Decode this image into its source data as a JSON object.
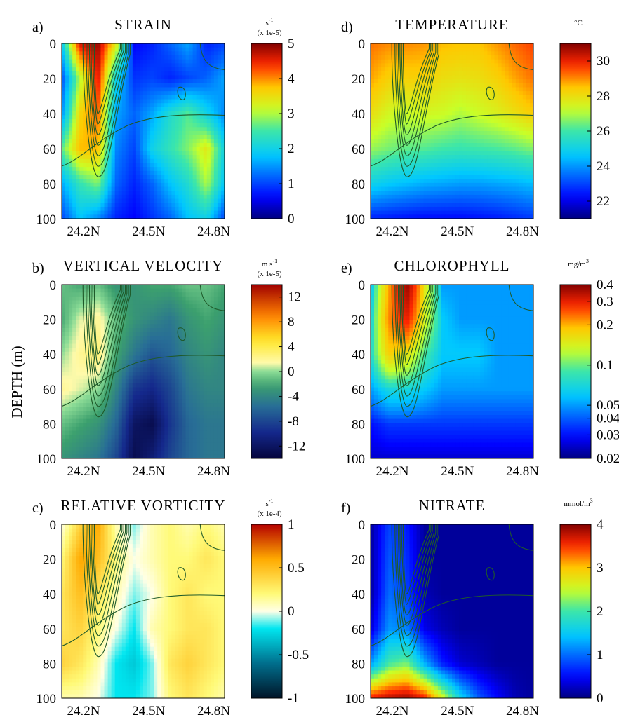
{
  "figure": {
    "ylabel": "DEPTH (m)",
    "colors": {
      "contour": "#1f5a2a",
      "background": "#ffffff"
    }
  },
  "chart_data": [
    {
      "panel_letter": "a)",
      "title": "STRAIN",
      "type": "heatmap",
      "x_ticks": [
        "24.2N",
        "24.5N",
        "24.8N"
      ],
      "y_ticks": [
        "0",
        "20",
        "40",
        "60",
        "80",
        "100"
      ],
      "xlim": [
        24.1,
        24.85
      ],
      "ylim": [
        0,
        100
      ],
      "colorbar": {
        "unit": "s",
        "unit_exp": "-1",
        "scale": "(x 1e-5)",
        "min": 0,
        "max": 5,
        "ticks": [
          "0",
          "1",
          "2",
          "3",
          "4",
          "5"
        ],
        "tick_values": [
          0,
          1,
          2,
          3,
          4,
          5
        ],
        "colormap": "jet"
      },
      "sample_values": [
        [
          1.8,
          4.6,
          4.9,
          3.4,
          0.6,
          0.8,
          1.2,
          1.6,
          0.8,
          1.0
        ],
        [
          1.0,
          3.0,
          4.6,
          2.0,
          0.9,
          1.0,
          0.8,
          1.0,
          1.2,
          1.6
        ],
        [
          1.4,
          3.6,
          4.2,
          1.6,
          1.2,
          1.6,
          2.2,
          2.6,
          2.0,
          1.4
        ],
        [
          2.6,
          3.8,
          3.8,
          1.4,
          1.0,
          2.0,
          2.4,
          2.8,
          3.4,
          2.0
        ],
        [
          1.6,
          2.4,
          2.8,
          1.2,
          0.8,
          1.2,
          1.8,
          2.2,
          3.0,
          1.8
        ],
        [
          1.0,
          1.8,
          1.4,
          0.8,
          0.6,
          0.9,
          1.2,
          1.8,
          2.0,
          1.0
        ]
      ]
    },
    {
      "panel_letter": "b)",
      "title": "VERTICAL VELOCITY",
      "type": "heatmap",
      "x_ticks": [
        "24.2N",
        "24.5N",
        "24.8N"
      ],
      "y_ticks": [
        "0",
        "20",
        "40",
        "60",
        "80",
        "100"
      ],
      "xlim": [
        24.1,
        24.85
      ],
      "ylim": [
        0,
        100
      ],
      "colorbar": {
        "unit": "m s",
        "unit_exp": "-1",
        "scale": "(x 1e-5)",
        "min": -14,
        "max": 14,
        "ticks": [
          "12",
          "8",
          "4",
          "0",
          "-4",
          "-8",
          "-12"
        ],
        "tick_values": [
          12,
          8,
          4,
          0,
          -4,
          -8,
          -12
        ],
        "colormap": "green-jet"
      },
      "sample_values": [
        [
          -1,
          -2,
          -1,
          -3,
          -3,
          -2,
          -2,
          -1,
          -1,
          -2
        ],
        [
          -2,
          1,
          2,
          -1,
          -3,
          -4,
          -5,
          -3,
          -2,
          -3
        ],
        [
          0,
          2,
          3,
          -2,
          -5,
          -7,
          -6,
          -4,
          -3,
          -4
        ],
        [
          2,
          1,
          0,
          -4,
          -9,
          -10,
          -8,
          -5,
          -4,
          -4
        ],
        [
          -1,
          -2,
          -3,
          -6,
          -12,
          -13,
          -9,
          -6,
          -5,
          -5
        ],
        [
          -3,
          -4,
          -5,
          -8,
          -13,
          -11,
          -8,
          -6,
          -5,
          -5
        ]
      ]
    },
    {
      "panel_letter": "c)",
      "title": "RELATIVE VORTICITY",
      "type": "heatmap",
      "x_ticks": [
        "24.2N",
        "24.5N",
        "24.8N"
      ],
      "y_ticks": [
        "0",
        "20",
        "40",
        "60",
        "80",
        "100"
      ],
      "xlim": [
        24.1,
        24.85
      ],
      "ylim": [
        0,
        100
      ],
      "colorbar": {
        "unit": "s",
        "unit_exp": "-1",
        "scale": "(x 1e-4)",
        "min": -1,
        "max": 1,
        "ticks": [
          "1",
          "0.5",
          "0",
          "-0.5",
          "-1"
        ],
        "tick_values": [
          1,
          0.5,
          0,
          -0.5,
          -1
        ],
        "colormap": "vorticity"
      },
      "sample_values": [
        [
          0.0,
          0.4,
          0.6,
          0.1,
          -0.1,
          0.1,
          0.2,
          0.1,
          0.2,
          0.1
        ],
        [
          0.2,
          0.6,
          0.5,
          0.2,
          0.0,
          0.1,
          0.2,
          0.2,
          0.3,
          0.2
        ],
        [
          0.3,
          0.5,
          0.3,
          0.1,
          -0.1,
          0.0,
          0.2,
          0.3,
          0.2,
          0.2
        ],
        [
          0.3,
          0.4,
          0.2,
          0.0,
          -0.2,
          0.1,
          0.2,
          0.3,
          0.3,
          0.2
        ],
        [
          0.4,
          0.3,
          0.1,
          -0.2,
          -0.3,
          -0.1,
          0.3,
          0.4,
          0.3,
          0.2
        ],
        [
          0.1,
          0.1,
          0.0,
          -0.2,
          -0.2,
          -0.1,
          0.2,
          0.3,
          0.2,
          0.1
        ]
      ]
    },
    {
      "panel_letter": "d)",
      "title": "TEMPERATURE",
      "type": "heatmap",
      "x_ticks": [
        "24.2N",
        "24.5N",
        "24.8N"
      ],
      "y_ticks": [
        "0",
        "20",
        "40",
        "60",
        "80",
        "100"
      ],
      "xlim": [
        24.1,
        24.85
      ],
      "ylim": [
        0,
        100
      ],
      "colorbar": {
        "unit": "°C",
        "unit_exp": "",
        "scale": "",
        "min": 21,
        "max": 31,
        "ticks": [
          "30",
          "28",
          "26",
          "24",
          "22"
        ],
        "tick_values": [
          30,
          28,
          26,
          24,
          22
        ],
        "colormap": "jet"
      },
      "sample_values": [
        [
          29.2,
          29.0,
          29.0,
          28.9,
          28.6,
          28.5,
          28.5,
          28.9,
          29.3,
          29.6
        ],
        [
          28.8,
          28.3,
          28.3,
          28.3,
          28.0,
          27.9,
          28.0,
          28.3,
          28.8,
          29.2
        ],
        [
          28.0,
          27.4,
          27.3,
          27.4,
          27.3,
          27.0,
          27.3,
          27.6,
          28.0,
          28.4
        ],
        [
          26.8,
          26.5,
          26.3,
          26.2,
          26.0,
          25.9,
          26.0,
          26.1,
          26.3,
          26.6
        ],
        [
          25.0,
          24.7,
          24.5,
          24.3,
          24.2,
          24.1,
          24.1,
          24.2,
          24.3,
          24.5
        ],
        [
          22.6,
          22.5,
          22.4,
          22.3,
          22.3,
          22.3,
          22.4,
          22.5,
          22.7,
          22.9
        ]
      ]
    },
    {
      "panel_letter": "e)",
      "title": "CHLOROPHYLL",
      "type": "heatmap",
      "x_ticks": [
        "24.2N",
        "24.5N",
        "24.8N"
      ],
      "y_ticks": [
        "0",
        "20",
        "40",
        "60",
        "80",
        "100"
      ],
      "xlim": [
        24.1,
        24.85
      ],
      "ylim": [
        0,
        100
      ],
      "colorbar": {
        "unit": "mg/m",
        "unit_exp": "3",
        "scale": "",
        "min": 0.02,
        "max": 0.4,
        "log": true,
        "ticks": [
          "0.4",
          "0.3",
          "0.2",
          "0.1",
          "0.05",
          "0.04",
          "0.03",
          "0.02"
        ],
        "tick_values": [
          0.4,
          0.3,
          0.2,
          0.1,
          0.05,
          0.04,
          0.03,
          0.02
        ],
        "colormap": "jet"
      },
      "sample_values": [
        [
          0.05,
          0.2,
          0.38,
          0.15,
          0.05,
          0.05,
          0.05,
          0.05,
          0.05,
          0.05
        ],
        [
          0.06,
          0.22,
          0.3,
          0.14,
          0.06,
          0.05,
          0.05,
          0.05,
          0.05,
          0.05
        ],
        [
          0.07,
          0.18,
          0.16,
          0.09,
          0.06,
          0.06,
          0.06,
          0.05,
          0.05,
          0.05
        ],
        [
          0.05,
          0.07,
          0.07,
          0.06,
          0.05,
          0.05,
          0.05,
          0.05,
          0.05,
          0.05
        ],
        [
          0.03,
          0.035,
          0.035,
          0.035,
          0.035,
          0.035,
          0.035,
          0.035,
          0.035,
          0.035
        ],
        [
          0.025,
          0.025,
          0.025,
          0.025,
          0.025,
          0.025,
          0.025,
          0.025,
          0.025,
          0.025
        ]
      ]
    },
    {
      "panel_letter": "f)",
      "title": "NITRATE",
      "type": "heatmap",
      "x_ticks": [
        "24.2N",
        "24.5N",
        "24.8N"
      ],
      "y_ticks": [
        "0",
        "20",
        "40",
        "60",
        "80",
        "100"
      ],
      "xlim": [
        24.1,
        24.85
      ],
      "ylim": [
        0,
        100
      ],
      "colorbar": {
        "unit": "mmol/m",
        "unit_exp": "3",
        "scale": "",
        "min": 0,
        "max": 4,
        "ticks": [
          "4",
          "3",
          "2",
          "1",
          "0"
        ],
        "tick_values": [
          4,
          3,
          2,
          1,
          0
        ],
        "colormap": "jet"
      },
      "sample_values": [
        [
          0.1,
          0.8,
          0.6,
          0.1,
          0.1,
          0.1,
          0.1,
          0.1,
          0.1,
          0.1
        ],
        [
          0.1,
          0.9,
          0.7,
          0.1,
          0.1,
          0.1,
          0.1,
          0.1,
          0.1,
          0.1
        ],
        [
          0.1,
          1.0,
          0.8,
          0.2,
          0.1,
          0.1,
          0.1,
          0.1,
          0.1,
          0.1
        ],
        [
          0.3,
          1.2,
          1.1,
          0.4,
          0.2,
          0.1,
          0.1,
          0.1,
          0.1,
          0.1
        ],
        [
          1.2,
          2.0,
          2.2,
          1.3,
          0.6,
          0.3,
          0.2,
          0.1,
          0.1,
          0.1
        ],
        [
          3.6,
          3.8,
          3.9,
          3.6,
          2.6,
          1.6,
          0.9,
          0.5,
          0.2,
          0.1
        ]
      ]
    }
  ]
}
